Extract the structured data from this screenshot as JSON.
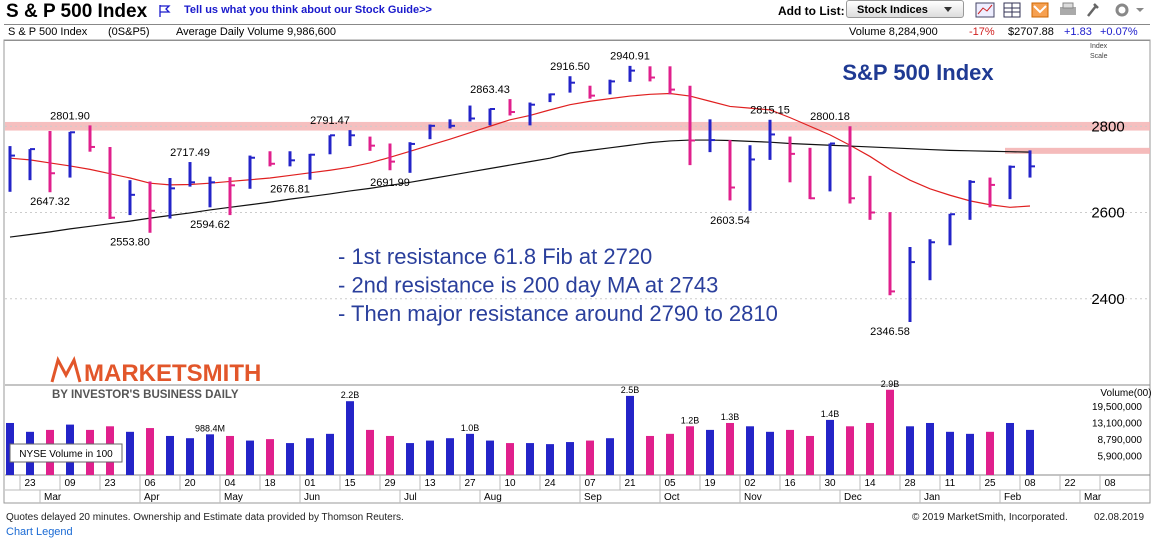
{
  "header": {
    "title": "S & P 500 Index",
    "feedback": "Tell us what you think about our Stock Guide>>",
    "add_to_list": "Add to List:",
    "list_button": "Stock Indices"
  },
  "info": {
    "name": "S & P 500 Index",
    "symbol": "(0S&P5)",
    "avg_volume": "Average Daily Volume 9,986,600",
    "volume": "Volume 8,284,900",
    "volume_change": "-17%",
    "price": "$2707.88",
    "change": "+1.83",
    "change_pct": "+0.07%",
    "scale": "Index",
    "scale2": "Scale"
  },
  "chart_data": [
    {
      "type": "ohlc",
      "title": "S&P 500 Index",
      "categories": [
        null,
        "23",
        null,
        "09",
        null,
        "23",
        null,
        "06",
        null,
        "20",
        null,
        "04",
        null,
        "18",
        null,
        "01",
        null,
        "15",
        null,
        "29",
        null,
        "13",
        null,
        "27",
        null,
        "10",
        null,
        "24",
        null,
        "07",
        null,
        "21",
        null,
        "05",
        null,
        "19",
        null,
        "02",
        null,
        "16",
        null,
        "30",
        null,
        "14",
        null,
        "28",
        null,
        "11",
        null,
        "25",
        null,
        "08",
        null,
        "22",
        null,
        "08"
      ],
      "month_labels": [
        null,
        null,
        "Mar",
        null,
        null,
        null,
        null,
        "Apr",
        null,
        null,
        null,
        "May",
        null,
        null,
        null,
        "Jun",
        null,
        null,
        null,
        null,
        "Jul",
        null,
        null,
        null,
        "Aug",
        null,
        null,
        null,
        null,
        "Sep",
        null,
        null,
        null,
        "Oct",
        null,
        null,
        null,
        "Nov",
        null,
        null,
        null,
        null,
        "Dec",
        null,
        null,
        null,
        "Jan",
        null,
        null,
        null,
        "Feb",
        null,
        null,
        null,
        "Mar",
        null
      ],
      "high": [
        2754,
        2747,
        2789,
        2787,
        2802,
        2752,
        2675,
        2672,
        2680,
        2717,
        2683,
        2682,
        2732,
        2742,
        2742,
        2736,
        2779,
        2791,
        2776,
        2760,
        2763,
        2804,
        2816,
        2848,
        2841,
        2863,
        2855,
        2876,
        2916,
        2894,
        2908,
        2940,
        2939,
        2939,
        2894,
        2816,
        2768,
        2756,
        2815,
        2776,
        2750,
        2760,
        2800,
        2685,
        2601,
        2520,
        2538,
        2597,
        2675,
        2681,
        2709,
        2744,
        null,
        null,
        null,
        null
      ],
      "low": [
        2648,
        2675,
        2647,
        2681,
        2741,
        2585,
        2594,
        2553,
        2586,
        2660,
        2612,
        2594,
        2655,
        2707,
        2707,
        2676,
        2735,
        2754,
        2743,
        2698,
        2692,
        2770,
        2795,
        2811,
        2802,
        2825,
        2802,
        2856,
        2878,
        2864,
        2874,
        2903,
        2904,
        2874,
        2710,
        2740,
        2628,
        2604,
        2722,
        2670,
        2631,
        2649,
        2621,
        2583,
        2408,
        2346,
        2443,
        2524,
        2583,
        2612,
        2631,
        2681,
        null,
        null,
        null,
        null
      ],
      "close": [
        2732,
        2747,
        2691,
        2786,
        2752,
        2588,
        2641,
        2604,
        2656,
        2670,
        2670,
        2663,
        2727,
        2713,
        2721,
        2734,
        2779,
        2779,
        2755,
        2718,
        2759,
        2801,
        2801,
        2818,
        2840,
        2833,
        2850,
        2874,
        2901,
        2871,
        2904,
        2929,
        2913,
        2885,
        2767,
        2768,
        2658,
        2723,
        2781,
        2736,
        2633,
        2760,
        2633,
        2600,
        2417,
        2485,
        2531,
        2596,
        2671,
        2664,
        2706,
        2707,
        null,
        null,
        null,
        null
      ],
      "up_color": "#2424c8",
      "down_color": "#e0208c",
      "lines": [
        {
          "color": "#e02020",
          "values": [
            2726,
            2722,
            2715,
            2708,
            2700,
            2690,
            2680,
            2668,
            2664,
            2665,
            2668,
            2672,
            2676,
            2680,
            2686,
            2692,
            2698,
            2705,
            2715,
            2728,
            2742,
            2756,
            2770,
            2785,
            2800,
            2815,
            2825,
            2838,
            2850,
            2858,
            2864,
            2870,
            2874,
            2876,
            2870,
            2858,
            2846,
            2842,
            2838,
            2820,
            2800,
            2780,
            2756,
            2730,
            2700,
            2675,
            2655,
            2640,
            2627,
            2618,
            2612,
            2615,
            null,
            null,
            null,
            null
          ]
        },
        {
          "color": "#111111",
          "values": [
            2543,
            2549,
            2555,
            2562,
            2568,
            2574,
            2580,
            2587,
            2593,
            2599,
            2606,
            2612,
            2618,
            2624,
            2631,
            2637,
            2643,
            2650,
            2656,
            2663,
            2670,
            2678,
            2686,
            2694,
            2702,
            2710,
            2718,
            2726,
            2738,
            2744,
            2750,
            2756,
            2762,
            2766,
            2768,
            2768,
            2767,
            2765,
            2763,
            2760,
            2758,
            2756,
            2754,
            2752,
            2750,
            2748,
            2746,
            2744,
            2743,
            2742,
            2741,
            2740,
            null,
            null,
            null,
            null
          ]
        }
      ],
      "resistance_band": [
        2790,
        2810
      ],
      "resistance_level": 2743,
      "band_color": "#f4b4b4",
      "ylim": [
        2200,
        3000
      ],
      "yticks": [
        2400,
        2600,
        2800
      ],
      "grid": true,
      "price_labels": [
        {
          "week": 3,
          "value": 2801.9,
          "label": "2801.90"
        },
        {
          "week": 16,
          "value": 2791.47,
          "label": "2791.47"
        },
        {
          "week": 24,
          "value": 2863.43,
          "label": "2863.43"
        },
        {
          "week": 28,
          "value": 2916.5,
          "label": "2916.50"
        },
        {
          "week": 31,
          "value": 2940.91,
          "label": "2940.91"
        },
        {
          "week": 38,
          "value": 2815.15,
          "label": "2815.15"
        },
        {
          "week": 41,
          "value": 2800.18,
          "label": "2800.18"
        },
        {
          "week": 9,
          "value": 2717.49,
          "label": "2717.49"
        },
        {
          "week": 14,
          "value": 2676.81,
          "label": "2676.81"
        },
        {
          "week": 19,
          "value": 2691.99,
          "label": "2691.99"
        },
        {
          "week": 2,
          "value": 2647.32,
          "label": "2647.32"
        },
        {
          "week": 6,
          "value": 2553.8,
          "label": "2553.80"
        },
        {
          "week": 10,
          "value": 2594.62,
          "label": "2594.62"
        },
        {
          "week": 36,
          "value": 2603.54,
          "label": "2603.54"
        },
        {
          "week": 44,
          "value": 2346.58,
          "label": "2346.58"
        }
      ],
      "annotations": [
        "- 1st resistance 61.8 Fib at 2720",
        "- 2nd resistance is 200 day MA at 2743",
        "- Then major resistance around 2790 to 2810"
      ]
    },
    {
      "type": "bar",
      "y_label": "Volume(00)",
      "box_label": "NYSE Volume in 100",
      "log": true,
      "values": [
        13000000,
        10500000,
        11000000,
        12500000,
        11000000,
        12000000,
        10500000,
        11500000,
        9500000,
        9000000,
        9884000,
        9500000,
        8500000,
        8800000,
        8000000,
        9000000,
        10000000,
        22000000,
        11000000,
        9500000,
        8000000,
        8500000,
        9000000,
        10000000,
        8500000,
        8000000,
        8000000,
        7800000,
        8200000,
        8500000,
        9000000,
        25000000,
        9500000,
        10000000,
        12000000,
        11000000,
        13000000,
        12000000,
        10500000,
        11000000,
        9500000,
        14000000,
        12000000,
        13000000,
        29000000,
        12000000,
        13000000,
        10500000,
        10000000,
        10500000,
        13000000,
        11000000,
        null,
        null,
        null,
        null
      ],
      "value_labels": [
        null,
        null,
        null,
        null,
        null,
        null,
        null,
        null,
        null,
        null,
        "988.4M",
        null,
        null,
        null,
        null,
        null,
        null,
        "2.2B",
        null,
        null,
        null,
        null,
        null,
        "1.0B",
        null,
        null,
        null,
        null,
        null,
        null,
        null,
        "2.5B",
        null,
        null,
        "1.2B",
        null,
        "1.3B",
        null,
        null,
        null,
        null,
        "1.4B",
        null,
        null,
        "2.9B",
        null,
        null,
        null,
        null,
        null,
        null,
        null,
        null,
        null,
        null,
        null
      ],
      "ylim": [
        3700000,
        31000000
      ],
      "yticks": [
        {
          "value": 19500000,
          "label": "19,500,000"
        },
        {
          "value": 13100000,
          "label": "13,100,000"
        },
        {
          "value": 8790000,
          "label": "8,790,000"
        },
        {
          "value": 5900000,
          "label": "5,900,000"
        }
      ]
    }
  ],
  "logo": {
    "name": "MARKETSMITH",
    "tagline": "BY INVESTOR'S BUSINESS DAILY"
  },
  "footer": {
    "note": "Quotes delayed 20 minutes. Ownership and Estimate data provided by Thomson Reuters.",
    "copyright": "© 2019 MarketSmith, Incorporated.",
    "date": "02.08.2019",
    "legend": "Chart Legend"
  }
}
